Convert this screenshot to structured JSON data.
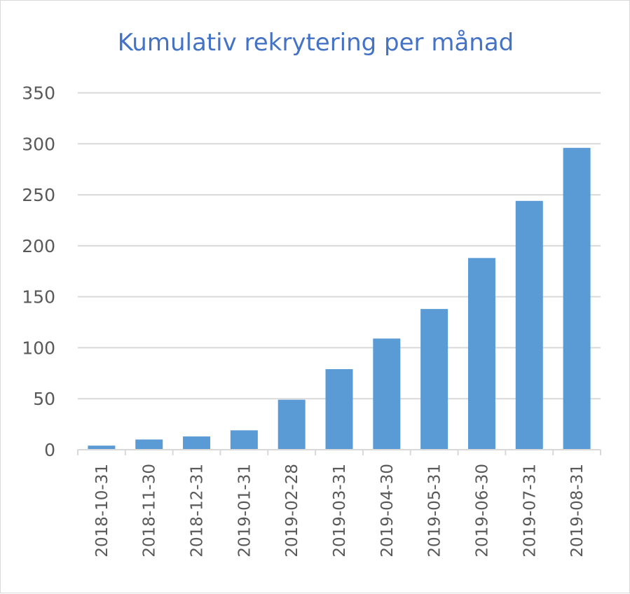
{
  "chart_data": {
    "type": "bar",
    "title": "Kumulativ rekrytering per månad",
    "categories": [
      "2018-10-31",
      "2018-11-30",
      "2018-12-31",
      "2019-01-31",
      "2019-02-28",
      "2019-03-31",
      "2019-04-30",
      "2019-05-31",
      "2019-06-30",
      "2019-07-31",
      "2019-08-31"
    ],
    "values": [
      4,
      10,
      13,
      19,
      49,
      79,
      109,
      138,
      188,
      244,
      296
    ],
    "ylim": [
      0,
      350
    ],
    "yticks": [
      0,
      50,
      100,
      150,
      200,
      250,
      300,
      350
    ],
    "grid": true,
    "bar_color": "#5b9bd5",
    "title_color": "#4472c4",
    "gridline_color": "#d9d9d9",
    "tick_label_color": "#595959"
  }
}
